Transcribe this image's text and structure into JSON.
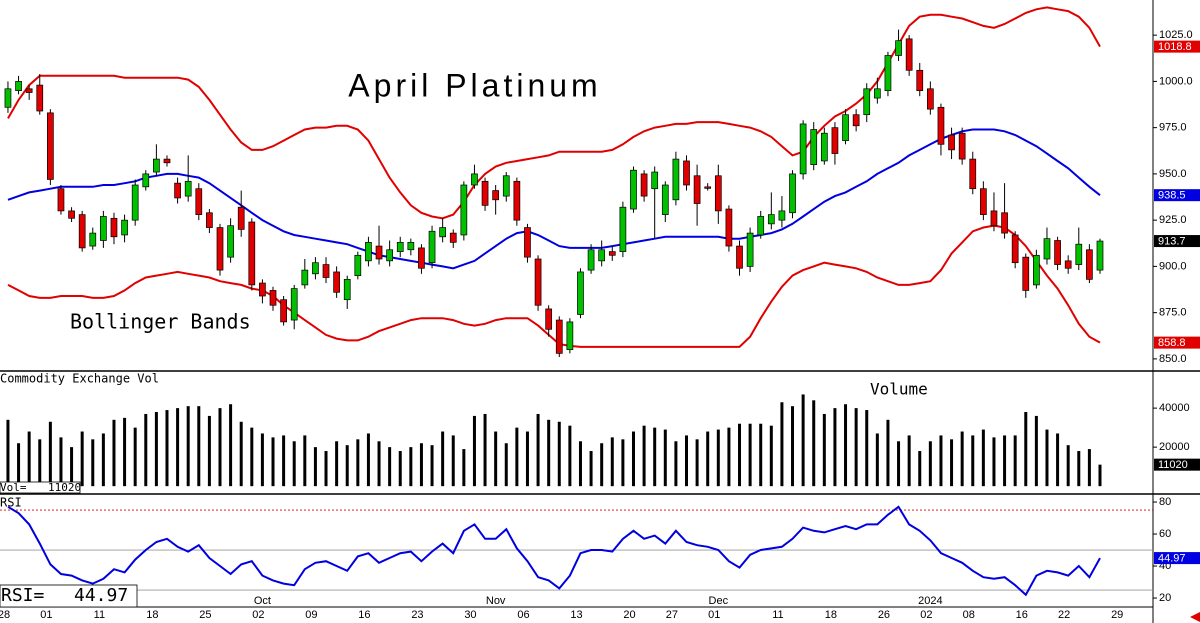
{
  "x_axis": {
    "xlim": [
      -0.75,
      108
    ],
    "labels": [
      {
        "index": 0,
        "label": "28"
      },
      {
        "index": 4,
        "label": "01"
      },
      {
        "index": 9,
        "label": "11"
      },
      {
        "index": 14,
        "label": "18"
      },
      {
        "index": 19,
        "label": "25"
      },
      {
        "index": 24,
        "label": "02"
      },
      {
        "index": 29,
        "label": "09"
      },
      {
        "index": 34,
        "label": "16"
      },
      {
        "index": 39,
        "label": "23"
      },
      {
        "index": 44,
        "label": "30"
      },
      {
        "index": 49,
        "label": "06"
      },
      {
        "index": 54,
        "label": "13"
      },
      {
        "index": 59,
        "label": "20"
      },
      {
        "index": 63,
        "label": "27"
      },
      {
        "index": 67,
        "label": "01"
      },
      {
        "index": 73,
        "label": "11"
      },
      {
        "index": 78,
        "label": "18"
      },
      {
        "index": 83,
        "label": "26"
      },
      {
        "index": 87,
        "label": "02"
      },
      {
        "index": 91,
        "label": "08"
      },
      {
        "index": 96,
        "label": "16"
      },
      {
        "index": 100,
        "label": "22"
      },
      {
        "index": 105,
        "label": "29"
      }
    ],
    "group_labels": [
      {
        "index": 24,
        "label": "Oct"
      },
      {
        "index": 46,
        "label": "Nov"
      },
      {
        "index": 67,
        "label": "Dec"
      },
      {
        "index": 87,
        "label": "2024"
      }
    ]
  },
  "chart_data": [
    {
      "type": "candlestick",
      "title": "April Platinum",
      "annotation": "Bollinger Bands",
      "up_color": "#00c000",
      "down_color": "#e00000",
      "close_marker_color": "#000000",
      "ylim": [
        844,
        1044
      ],
      "yticks": [
        {
          "value": 850,
          "label": "850.0"
        },
        {
          "value": 875,
          "label": "875.0"
        },
        {
          "value": 900,
          "label": "900.0"
        },
        {
          "value": 925,
          "label": "925.0"
        },
        {
          "value": 950,
          "label": "950.0"
        },
        {
          "value": 975,
          "label": "975.0"
        },
        {
          "value": 1000,
          "label": "1000.0"
        },
        {
          "value": 1025,
          "label": "1025.0"
        }
      ],
      "open": [
        986,
        995,
        996,
        998,
        983,
        942,
        930,
        928,
        911,
        914,
        926,
        917,
        925,
        943,
        951,
        958,
        945,
        938,
        942,
        929,
        921,
        905,
        932,
        924,
        891,
        887,
        882,
        871,
        890,
        896,
        901,
        897,
        882,
        895,
        903,
        911,
        903,
        908,
        909,
        910,
        902,
        916,
        918,
        917,
        944,
        946,
        941,
        938,
        946,
        921,
        904,
        877,
        871,
        855,
        874,
        898,
        903,
        908,
        908,
        931,
        950,
        942,
        928,
        936,
        957,
        949,
        943,
        949,
        931,
        911,
        900,
        917,
        923,
        925,
        929,
        950,
        955,
        957,
        975,
        968,
        982,
        982,
        991,
        995,
        1014,
        1023,
        1006,
        996,
        986,
        971,
        972,
        958,
        942,
        930,
        929,
        917,
        905,
        890,
        904,
        914,
        903,
        901,
        909,
        898
      ],
      "high": [
        1000,
        1003,
        998,
        1004,
        985,
        944,
        932,
        930,
        921,
        930,
        929,
        928,
        947,
        952,
        966,
        960,
        948,
        960,
        945,
        931,
        923,
        926,
        941,
        926,
        893,
        889,
        884,
        890,
        904,
        905,
        905,
        900,
        895,
        908,
        916,
        922,
        914,
        916,
        915,
        912,
        922,
        926,
        920,
        946,
        955,
        948,
        944,
        951,
        948,
        923,
        906,
        879,
        873,
        872,
        899,
        912,
        914,
        911,
        935,
        954,
        952,
        954,
        946,
        962,
        960,
        955,
        945,
        955,
        933,
        914,
        921,
        930,
        940,
        938,
        952,
        979,
        978,
        975,
        978,
        985,
        985,
        999,
        1002,
        1016,
        1028,
        1025,
        1010,
        1000,
        988,
        975,
        975,
        962,
        946,
        940,
        945,
        919,
        907,
        909,
        921,
        916,
        906,
        921,
        912,
        915
      ],
      "low": [
        983,
        993,
        990,
        982,
        944,
        928,
        924,
        908,
        909,
        910,
        912,
        913,
        922,
        941,
        949,
        954,
        934,
        935,
        925,
        918,
        895,
        902,
        916,
        887,
        880,
        876,
        868,
        866,
        888,
        893,
        891,
        883,
        877,
        893,
        900,
        901,
        900,
        905,
        906,
        896,
        899,
        913,
        910,
        914,
        942,
        930,
        928,
        935,
        922,
        902,
        876,
        862,
        851,
        853,
        872,
        896,
        900,
        903,
        905,
        929,
        935,
        915,
        924,
        933,
        941,
        922,
        941,
        923,
        908,
        895,
        897,
        915,
        920,
        921,
        926,
        947,
        952,
        955,
        955,
        966,
        973,
        978,
        988,
        992,
        1011,
        1003,
        992,
        982,
        960,
        958,
        955,
        939,
        925,
        919,
        915,
        899,
        883,
        888,
        901,
        898,
        896,
        898,
        891,
        896
      ],
      "close": [
        996,
        1000,
        994,
        984,
        947,
        930,
        926,
        910,
        918,
        927,
        916,
        925,
        944,
        950,
        958,
        956,
        937,
        946,
        928,
        921,
        898,
        922,
        920,
        890,
        884,
        879,
        870,
        888,
        898,
        902,
        894,
        886,
        893,
        906,
        913,
        904,
        909,
        913,
        913,
        899,
        919,
        921,
        913,
        944,
        950,
        933,
        936,
        949,
        925,
        905,
        879,
        866,
        853,
        870,
        897,
        909,
        909,
        906,
        932,
        952,
        938,
        951,
        944,
        958,
        944,
        934,
        942.5,
        930,
        911,
        899,
        918,
        927,
        928,
        930,
        950,
        977,
        974,
        972,
        961,
        982,
        976,
        996,
        996,
        1014,
        1022,
        1006,
        995,
        985,
        966,
        963,
        958,
        942,
        928,
        922,
        918,
        902,
        887,
        906,
        915,
        901,
        899,
        912,
        893,
        913.7
      ],
      "upper_band": {
        "color": "#e00000",
        "values": [
          980,
          990,
          998,
          1003,
          1003,
          1003,
          1003,
          1003,
          1003,
          1003,
          1003,
          1002,
          1002,
          1002,
          1002,
          1002,
          1002,
          1001,
          997,
          990,
          982,
          974,
          967,
          963,
          963,
          965,
          968,
          971,
          974,
          975,
          975,
          976,
          976,
          974,
          968,
          958,
          948,
          940,
          933,
          929,
          927,
          926,
          928,
          935,
          944,
          950,
          954,
          956,
          957,
          958,
          959,
          960,
          962,
          962,
          962,
          962,
          962,
          963,
          966,
          970,
          973,
          975,
          976,
          977,
          977,
          978,
          978,
          978,
          977,
          976,
          975,
          973,
          970,
          965,
          960,
          962,
          970,
          976,
          981,
          984,
          988,
          993,
          1000,
          1010,
          1020,
          1030,
          1035,
          1036,
          1036,
          1035,
          1034,
          1032,
          1030,
          1029,
          1031,
          1034,
          1037,
          1039,
          1040,
          1039,
          1038,
          1035,
          1029,
          1018.8
        ]
      },
      "middle_band": {
        "color": "#0000e0",
        "values": [
          936,
          938,
          940,
          941,
          942,
          943,
          943,
          943,
          943,
          944,
          944,
          945,
          946,
          948,
          949,
          950,
          950,
          949,
          948,
          945,
          941,
          937,
          933,
          929,
          925,
          922,
          919,
          917,
          916,
          915,
          914,
          913,
          912,
          910,
          908,
          906,
          905,
          904,
          903,
          902,
          901,
          900,
          899,
          901,
          903,
          907,
          911,
          915,
          918,
          919,
          917,
          914,
          911,
          910,
          910,
          910,
          910,
          911,
          912,
          913,
          914,
          915,
          916,
          916,
          916,
          916,
          916,
          916,
          915,
          915,
          916,
          917,
          918,
          920,
          923,
          927,
          931,
          935,
          938,
          940,
          943,
          946,
          950,
          953,
          956,
          960,
          963,
          966,
          969,
          971,
          973,
          974,
          974,
          974,
          973,
          971,
          968,
          965,
          961,
          957,
          953,
          948,
          943,
          938.5
        ]
      },
      "lower_band": {
        "color": "#e00000",
        "values": [
          890,
          887,
          884,
          883,
          883,
          884,
          884,
          884,
          883,
          883,
          884,
          887,
          891,
          894,
          895,
          896,
          897,
          896,
          895,
          894,
          892,
          891,
          890,
          888,
          887,
          884,
          879,
          875,
          871,
          867,
          863,
          861,
          860,
          860,
          862,
          865,
          867,
          869,
          871,
          872,
          872,
          872,
          871,
          869,
          868,
          869,
          871,
          872,
          872,
          872,
          868,
          863,
          858,
          857,
          856.5,
          856.5,
          856.5,
          856.5,
          856.5,
          856.5,
          856.5,
          856.5,
          856.5,
          856.5,
          856.5,
          856.5,
          856.5,
          856.5,
          856.5,
          856.5,
          862,
          872,
          881,
          889,
          895,
          898,
          900,
          902,
          901,
          900,
          899,
          897,
          894,
          892,
          890,
          890,
          891,
          892,
          898,
          907,
          913,
          919,
          921,
          922,
          921,
          917,
          911,
          903,
          895,
          888,
          879,
          869,
          862,
          858.8
        ]
      }
    },
    {
      "type": "bar",
      "title": "Commodity Exchange Vol",
      "annotation": "Volume",
      "current_label": "Vol=",
      "color": "#000000",
      "ylim": [
        -3000,
        58000
      ],
      "yticks": [
        20000,
        40000
      ],
      "values": [
        34000,
        22000,
        28000,
        24000,
        33000,
        25000,
        20000,
        28000,
        24000,
        27000,
        34000,
        35000,
        30000,
        37000,
        38000,
        39000,
        40000,
        41000,
        41000,
        36000,
        40000,
        42000,
        33000,
        30000,
        27000,
        25000,
        26000,
        23000,
        26000,
        20000,
        18000,
        23000,
        21000,
        24000,
        27000,
        23000,
        20000,
        18000,
        20000,
        22000,
        21000,
        28000,
        26000,
        19000,
        36000,
        37000,
        28000,
        22000,
        30000,
        28000,
        37000,
        34000,
        33000,
        31000,
        23000,
        18000,
        22000,
        25000,
        24000,
        28000,
        31000,
        30000,
        29000,
        23000,
        26000,
        24000,
        28000,
        29000,
        30000,
        32000,
        32000,
        32000,
        31000,
        43000,
        41000,
        47000,
        44000,
        37000,
        40000,
        42000,
        40000,
        39000,
        27000,
        34000,
        23000,
        26000,
        18000,
        23000,
        26000,
        24000,
        28000,
        26000,
        29000,
        25000,
        26000,
        26000,
        38000,
        36000,
        29000,
        27000,
        21000,
        18000,
        19000,
        11020
      ]
    },
    {
      "type": "line",
      "title": "RSI",
      "current_label": "RSI=",
      "color": "#0000e0",
      "ylim": [
        14.4,
        84.4
      ],
      "yticks": [
        20,
        40,
        60,
        80
      ],
      "levels": [
        {
          "value": 75,
          "color": "#e00000"
        },
        {
          "value": 50,
          "color": "#999999"
        },
        {
          "value": 25,
          "color": "#999999"
        }
      ],
      "values": [
        77,
        73,
        66,
        54,
        41,
        35,
        34,
        31,
        29,
        32,
        38,
        36,
        44,
        50,
        55,
        57,
        52,
        49,
        53,
        45,
        40,
        35,
        41,
        43,
        34,
        31,
        29,
        28,
        38,
        42,
        43,
        40,
        37,
        46,
        48,
        42,
        45,
        48,
        49,
        43,
        49,
        54,
        48,
        62,
        66,
        57,
        57,
        63,
        51,
        43,
        33,
        31,
        26,
        34,
        48,
        50,
        50,
        49,
        57,
        62,
        57,
        59,
        54,
        62,
        55,
        53,
        52,
        50,
        43,
        39,
        47,
        50,
        51,
        52,
        57,
        64,
        62,
        61,
        63,
        65,
        63,
        66,
        66,
        72,
        77,
        66,
        62,
        56,
        48,
        45,
        42,
        37,
        33,
        32,
        33,
        28,
        22,
        34,
        37,
        36,
        34,
        40,
        33,
        44.97
      ]
    }
  ]
}
